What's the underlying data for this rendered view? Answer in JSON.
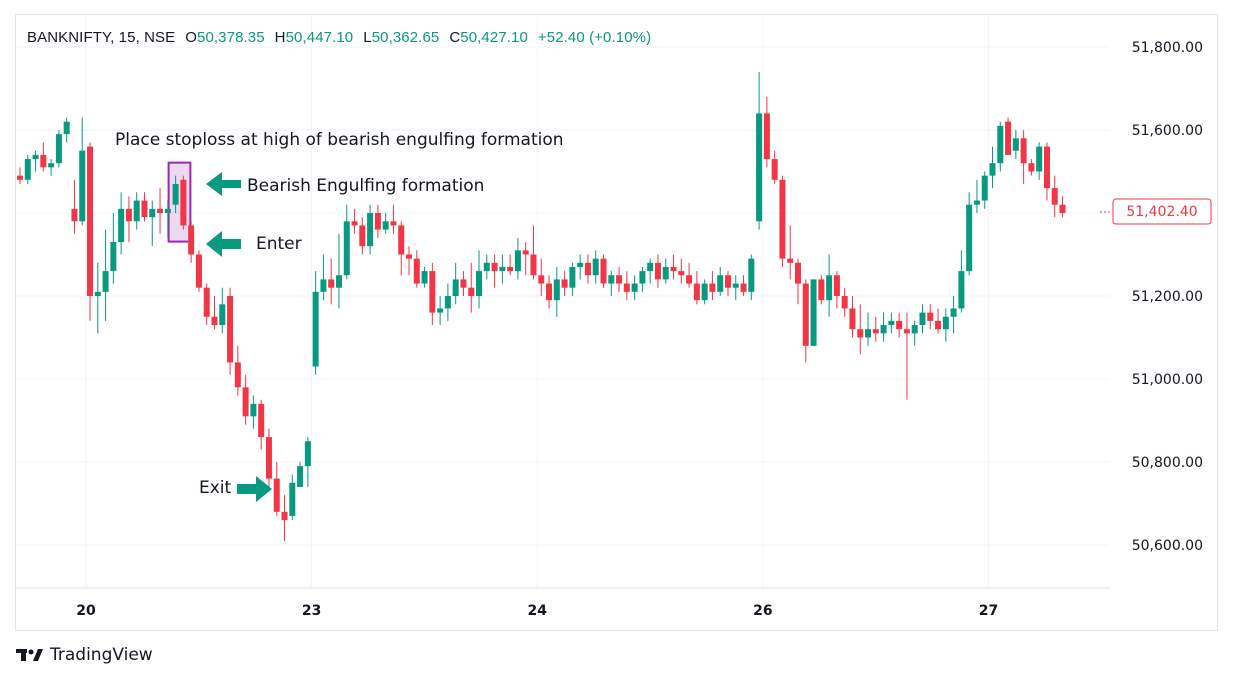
{
  "legend": {
    "symbol": "BANKNIFTY, 15, NSE",
    "open_key": "O",
    "open": "50,378.35",
    "high_key": "H",
    "high": "50,447.10",
    "low_key": "L",
    "low": "50,362.65",
    "close_key": "C",
    "close": "50,427.10",
    "change": "+52.40 (+0.10%)"
  },
  "annotations": {
    "stoploss": "Place stoploss at high of bearish engulfing formation",
    "engulfing": "Bearish Engulfing formation",
    "enter": "Enter",
    "exit": "Exit"
  },
  "price_tag": "51,402.40",
  "brand": "TradingView",
  "colors": {
    "up": "#089981",
    "down": "#f23645",
    "highlight": "#9c27b0",
    "arrow": "#089981"
  },
  "chart_data": {
    "type": "candlestick",
    "y_axis": {
      "min": 50600,
      "max": 51800,
      "ticks": [
        {
          "value": 51800,
          "label": "51,800.00"
        },
        {
          "value": 51600,
          "label": "51,600.00"
        },
        {
          "value": 51200,
          "label": "51,200.00"
        },
        {
          "value": 51000,
          "label": "51,000.00"
        },
        {
          "value": 50800,
          "label": "50,800.00"
        },
        {
          "value": 50600,
          "label": "50,600.00"
        }
      ]
    },
    "x_ticks": [
      {
        "index": 9,
        "label": "20"
      },
      {
        "index": 38,
        "label": "23"
      },
      {
        "index": 67,
        "label": "24"
      },
      {
        "index": 96,
        "label": "26"
      },
      {
        "index": 125,
        "label": "27"
      }
    ],
    "grid": true,
    "last_price": 51402.4,
    "highlight_range": [
      20,
      21
    ],
    "candles": [
      [
        51490,
        51510,
        51470,
        51480
      ],
      [
        51480,
        51540,
        51470,
        51530
      ],
      [
        51530,
        51550,
        51500,
        51540
      ],
      [
        51540,
        51570,
        51500,
        51510
      ],
      [
        51510,
        51530,
        51490,
        51520
      ],
      [
        51520,
        51600,
        51510,
        51590
      ],
      [
        51590,
        51630,
        51570,
        51620
      ],
      [
        51410,
        51480,
        51350,
        51380
      ],
      [
        51380,
        51630,
        51370,
        51550
      ],
      [
        51560,
        51570,
        51140,
        51200
      ],
      [
        51200,
        51280,
        51110,
        51210
      ],
      [
        51210,
        51360,
        51140,
        51260
      ],
      [
        51260,
        51400,
        51230,
        51330
      ],
      [
        51330,
        51450,
        51300,
        51410
      ],
      [
        51410,
        51440,
        51330,
        51380
      ],
      [
        51380,
        51450,
        51360,
        51430
      ],
      [
        51430,
        51450,
        51380,
        51390
      ],
      [
        51390,
        51430,
        51320,
        51410
      ],
      [
        51410,
        51460,
        51350,
        51400
      ],
      [
        51400,
        51430,
        51340,
        51410
      ],
      [
        51420,
        51490,
        51400,
        51470
      ],
      [
        51480,
        51490,
        51360,
        51370
      ],
      [
        51370,
        51380,
        51280,
        51300
      ],
      [
        51300,
        51310,
        51210,
        51220
      ],
      [
        51220,
        51230,
        51130,
        51150
      ],
      [
        51150,
        51200,
        51120,
        51130
      ],
      [
        51130,
        51220,
        51110,
        51180
      ],
      [
        51200,
        51220,
        51010,
        51040
      ],
      [
        51040,
        51080,
        50960,
        50980
      ],
      [
        50980,
        51010,
        50890,
        50910
      ],
      [
        50910,
        50960,
        50880,
        50940
      ],
      [
        50940,
        50950,
        50830,
        50860
      ],
      [
        50860,
        50880,
        50740,
        50760
      ],
      [
        50760,
        50800,
        50670,
        50680
      ],
      [
        50680,
        50720,
        50610,
        50660
      ],
      [
        50670,
        50770,
        50660,
        50750
      ],
      [
        50740,
        50800,
        50740,
        50790
      ],
      [
        50790,
        50860,
        50740,
        50850
      ],
      [
        51030,
        51260,
        51010,
        51210
      ],
      [
        51210,
        51300,
        51190,
        51240
      ],
      [
        51240,
        51290,
        51180,
        51220
      ],
      [
        51220,
        51350,
        51170,
        51250
      ],
      [
        51250,
        51420,
        51240,
        51380
      ],
      [
        51380,
        51410,
        51350,
        51370
      ],
      [
        51370,
        51390,
        51300,
        51320
      ],
      [
        51320,
        51420,
        51300,
        51400
      ],
      [
        51400,
        51420,
        51340,
        51360
      ],
      [
        51360,
        51400,
        51350,
        51380
      ],
      [
        51380,
        51420,
        51350,
        51370
      ],
      [
        51370,
        51380,
        51250,
        51300
      ],
      [
        51300,
        51320,
        51250,
        51290
      ],
      [
        51290,
        51310,
        51220,
        51230
      ],
      [
        51230,
        51270,
        51220,
        51260
      ],
      [
        51260,
        51280,
        51130,
        51160
      ],
      [
        51160,
        51200,
        51130,
        51170
      ],
      [
        51170,
        51230,
        51140,
        51200
      ],
      [
        51200,
        51280,
        51180,
        51240
      ],
      [
        51240,
        51260,
        51200,
        51220
      ],
      [
        51220,
        51280,
        51160,
        51200
      ],
      [
        51200,
        51310,
        51170,
        51260
      ],
      [
        51260,
        51300,
        51240,
        51280
      ],
      [
        51280,
        51300,
        51220,
        51260
      ],
      [
        51260,
        51300,
        51230,
        51270
      ],
      [
        51270,
        51300,
        51250,
        51260
      ],
      [
        51260,
        51340,
        51240,
        51310
      ],
      [
        51310,
        51330,
        51250,
        51300
      ],
      [
        51300,
        51370,
        51240,
        51250
      ],
      [
        51250,
        51290,
        51200,
        51230
      ],
      [
        51230,
        51250,
        51170,
        51190
      ],
      [
        51190,
        51270,
        51150,
        51240
      ],
      [
        51240,
        51260,
        51200,
        51220
      ],
      [
        51220,
        51280,
        51200,
        51270
      ],
      [
        51270,
        51300,
        51240,
        51280
      ],
      [
        51280,
        51300,
        51230,
        51250
      ],
      [
        51250,
        51310,
        51230,
        51290
      ],
      [
        51290,
        51300,
        51220,
        51230
      ],
      [
        51230,
        51260,
        51200,
        51250
      ],
      [
        51250,
        51270,
        51210,
        51230
      ],
      [
        51230,
        51260,
        51190,
        51210
      ],
      [
        51210,
        51250,
        51190,
        51230
      ],
      [
        51230,
        51270,
        51210,
        51260
      ],
      [
        51260,
        51290,
        51230,
        51280
      ],
      [
        51280,
        51300,
        51220,
        51240
      ],
      [
        51240,
        51290,
        51230,
        51270
      ],
      [
        51270,
        51300,
        51240,
        51260
      ],
      [
        51260,
        51290,
        51230,
        51250
      ],
      [
        51250,
        51280,
        51220,
        51230
      ],
      [
        51230,
        51260,
        51180,
        51190
      ],
      [
        51190,
        51240,
        51180,
        51230
      ],
      [
        51230,
        51260,
        51190,
        51210
      ],
      [
        51210,
        51270,
        51200,
        51250
      ],
      [
        51250,
        51260,
        51200,
        51220
      ],
      [
        51220,
        51250,
        51190,
        51230
      ],
      [
        51230,
        51250,
        51200,
        51210
      ],
      [
        51210,
        51300,
        51190,
        51290
      ],
      [
        51380,
        51740,
        51360,
        51640
      ],
      [
        51640,
        51680,
        51510,
        51530
      ],
      [
        51530,
        51550,
        51470,
        51480
      ],
      [
        51480,
        51490,
        51270,
        51290
      ],
      [
        51290,
        51370,
        51240,
        51280
      ],
      [
        51280,
        51290,
        51180,
        51230
      ],
      [
        51230,
        51240,
        51040,
        51080
      ],
      [
        51080,
        51240,
        51080,
        51240
      ],
      [
        51240,
        51250,
        51180,
        51190
      ],
      [
        51190,
        51300,
        51150,
        51250
      ],
      [
        51250,
        51260,
        51170,
        51200
      ],
      [
        51200,
        51220,
        51150,
        51170
      ],
      [
        51170,
        51200,
        51100,
        51120
      ],
      [
        51120,
        51180,
        51060,
        51100
      ],
      [
        51100,
        51160,
        51080,
        51120
      ],
      [
        51120,
        51150,
        51090,
        51110
      ],
      [
        51110,
        51160,
        51090,
        51130
      ],
      [
        51130,
        51160,
        51110,
        51140
      ],
      [
        51140,
        51160,
        51100,
        51120
      ],
      [
        51120,
        51160,
        50950,
        51110
      ],
      [
        51110,
        51140,
        51080,
        51130
      ],
      [
        51130,
        51180,
        51110,
        51160
      ],
      [
        51160,
        51180,
        51120,
        51140
      ],
      [
        51140,
        51170,
        51110,
        51120
      ],
      [
        51120,
        51170,
        51090,
        51150
      ],
      [
        51150,
        51200,
        51110,
        51170
      ],
      [
        51170,
        51310,
        51160,
        51260
      ],
      [
        51260,
        51450,
        51250,
        51420
      ],
      [
        51420,
        51480,
        51400,
        51430
      ],
      [
        51430,
        51500,
        51410,
        51490
      ],
      [
        51490,
        51560,
        51460,
        51520
      ],
      [
        51520,
        51620,
        51500,
        51610
      ],
      [
        51620,
        51630,
        51540,
        51540
      ],
      [
        51550,
        51600,
        51530,
        51580
      ],
      [
        51580,
        51600,
        51470,
        51520
      ],
      [
        51520,
        51530,
        51490,
        51500
      ],
      [
        51500,
        51570,
        51480,
        51560
      ],
      [
        51560,
        51570,
        51430,
        51460
      ],
      [
        51460,
        51490,
        51390,
        51420
      ],
      [
        51420,
        51440,
        51390,
        51400
      ]
    ]
  }
}
